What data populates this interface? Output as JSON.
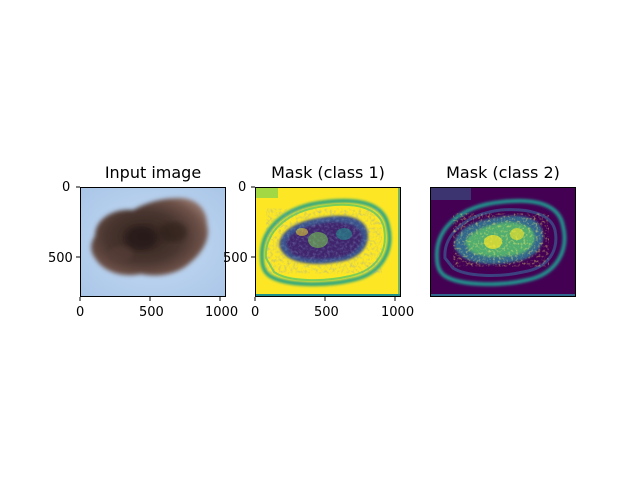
{
  "figure": {
    "panels": [
      {
        "title": "Input image",
        "x_ticks": [
          "0",
          "500",
          "1000"
        ],
        "y_ticks": [
          "0",
          "500"
        ],
        "content": "dermoscopy lesion photo"
      },
      {
        "title": "Mask (class 1)",
        "x_ticks": [
          "0",
          "500",
          "1000"
        ],
        "y_ticks": [
          "0",
          "500"
        ],
        "content": "viridis heatmap"
      },
      {
        "title": "Mask (class 2)",
        "content": "viridis heatmap"
      }
    ],
    "colors": {
      "skin": "#b9d2ee",
      "lesion_dark": "#3a2a24",
      "viridis_yellow": "#fde725",
      "viridis_green": "#35b779",
      "viridis_teal": "#21918c",
      "viridis_blue": "#31688e",
      "viridis_purple": "#440154",
      "viridis_indigo": "#3b528b"
    }
  }
}
